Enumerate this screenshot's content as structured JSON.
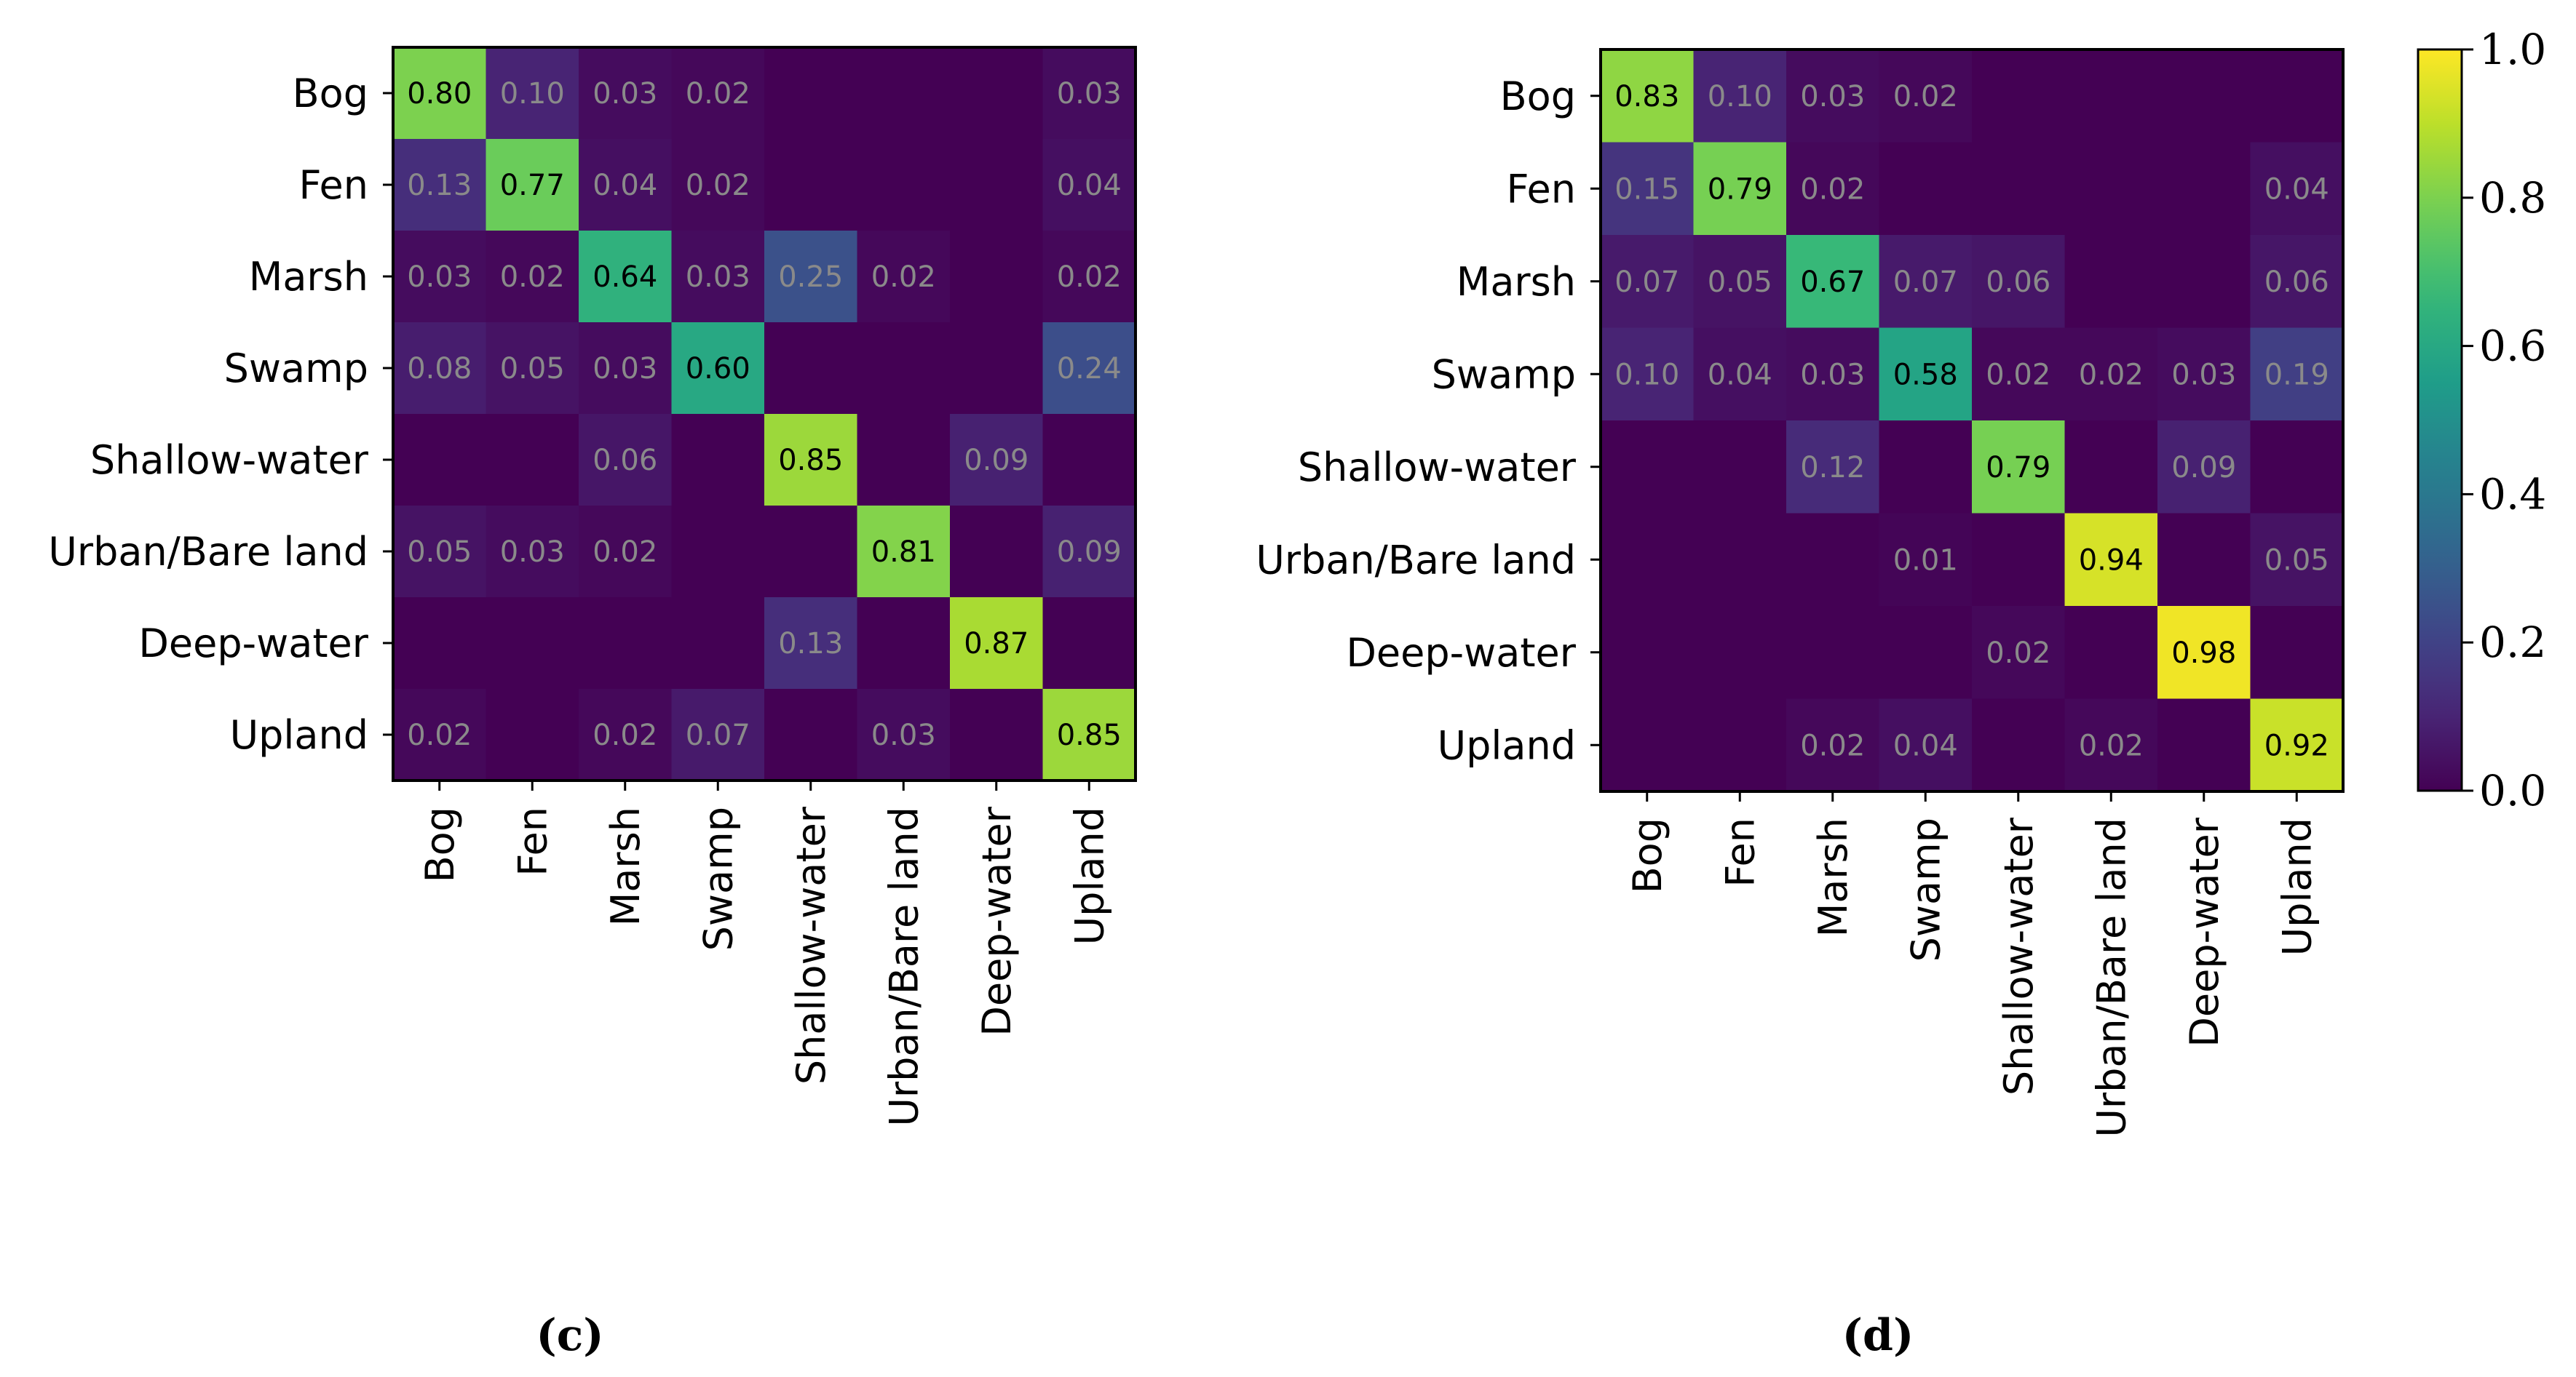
{
  "colors": {
    "cmap": [
      "#440154",
      "#482878",
      "#3e4989",
      "#31688e",
      "#26828e",
      "#1f9e89",
      "#35b779",
      "#6ece58",
      "#b5de2b",
      "#fde725"
    ],
    "text_dark": "#000000",
    "text_light": "#8a8a8a",
    "frame": "#000000"
  },
  "chart_data": [
    {
      "type": "heatmap",
      "panel_label": "(c)",
      "rows": [
        "Bog",
        "Fen",
        "Marsh",
        "Swamp",
        "Shallow-water",
        "Urban/Bare land",
        "Deep-water",
        "Upland"
      ],
      "columns": [
        "Bog",
        "Fen",
        "Marsh",
        "Swamp",
        "Shallow-water",
        "Urban/Bare land",
        "Deep-water",
        "Upland"
      ],
      "values": [
        [
          0.8,
          0.1,
          0.03,
          0.02,
          0.0,
          0.0,
          0.0,
          0.03
        ],
        [
          0.13,
          0.77,
          0.04,
          0.02,
          0.0,
          0.0,
          0.0,
          0.04
        ],
        [
          0.03,
          0.02,
          0.64,
          0.03,
          0.25,
          0.02,
          0.0,
          0.02
        ],
        [
          0.08,
          0.05,
          0.03,
          0.6,
          0.0,
          0.0,
          0.0,
          0.24
        ],
        [
          0.0,
          0.0,
          0.06,
          0.0,
          0.85,
          0.0,
          0.09,
          0.0
        ],
        [
          0.05,
          0.03,
          0.02,
          0.0,
          0.0,
          0.81,
          0.0,
          0.09
        ],
        [
          0.0,
          0.0,
          0.0,
          0.0,
          0.13,
          0.0,
          0.87,
          0.0
        ],
        [
          0.02,
          0.0,
          0.02,
          0.07,
          0.0,
          0.03,
          0.0,
          0.85
        ]
      ],
      "vmin": 0.0,
      "vmax": 1.0
    },
    {
      "type": "heatmap",
      "panel_label": "(d)",
      "rows": [
        "Bog",
        "Fen",
        "Marsh",
        "Swamp",
        "Shallow-water",
        "Urban/Bare land",
        "Deep-water",
        "Upland"
      ],
      "columns": [
        "Bog",
        "Fen",
        "Marsh",
        "Swamp",
        "Shallow-water",
        "Urban/Bare land",
        "Deep-water",
        "Upland"
      ],
      "values": [
        [
          0.83,
          0.1,
          0.03,
          0.02,
          0.0,
          0.0,
          0.0,
          0.0
        ],
        [
          0.15,
          0.79,
          0.02,
          0.0,
          0.0,
          0.0,
          0.0,
          0.04
        ],
        [
          0.07,
          0.05,
          0.67,
          0.07,
          0.06,
          0.0,
          0.0,
          0.06
        ],
        [
          0.1,
          0.04,
          0.03,
          0.58,
          0.02,
          0.02,
          0.03,
          0.19
        ],
        [
          0.0,
          0.0,
          0.12,
          0.0,
          0.79,
          0.0,
          0.09,
          0.0
        ],
        [
          0.0,
          0.0,
          0.0,
          0.01,
          0.0,
          0.94,
          0.0,
          0.05
        ],
        [
          0.0,
          0.0,
          0.0,
          0.0,
          0.02,
          0.0,
          0.98,
          0.0
        ],
        [
          0.0,
          0.0,
          0.02,
          0.04,
          0.0,
          0.02,
          0.0,
          0.92
        ]
      ],
      "vmin": 0.0,
      "vmax": 1.0
    }
  ],
  "colorbar": {
    "ticks": [
      0.0,
      0.2,
      0.4,
      0.6,
      0.8,
      1.0
    ],
    "tick_labels": [
      "0.0",
      "0.2",
      "0.4",
      "0.6",
      "0.8",
      "1.0"
    ]
  }
}
